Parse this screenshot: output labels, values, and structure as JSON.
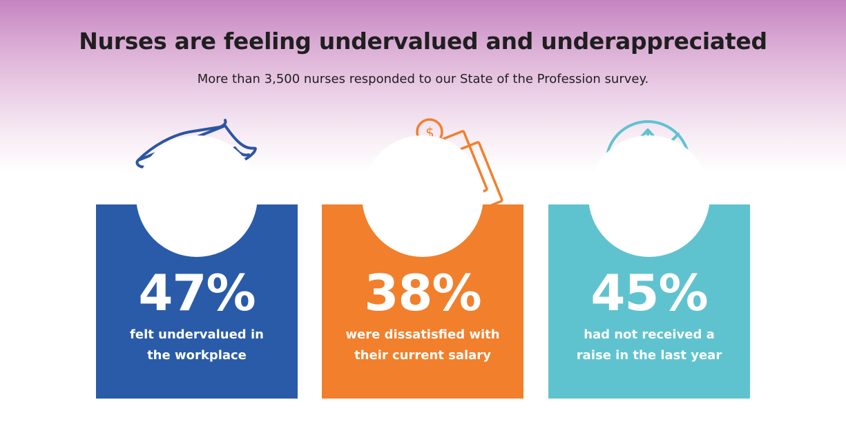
{
  "header": {
    "title": "Nurses are feeling undervalued and underappreciated",
    "subtitle": "More than 3,500 nurses responded to our State of the Profession survey."
  },
  "cards": [
    {
      "value": "47%",
      "description": "felt undervalued in the workplace",
      "color": "#2a5ba8",
      "icon": "hand-heart-icon"
    },
    {
      "value": "38%",
      "description": "were dissatisfied with their current salary",
      "color": "#f27f2b",
      "icon": "sad-face-money-icon"
    },
    {
      "value": "45%",
      "description": "had not received a raise in the last year",
      "color": "#5fc3cf",
      "icon": "no-raise-icon"
    }
  ]
}
